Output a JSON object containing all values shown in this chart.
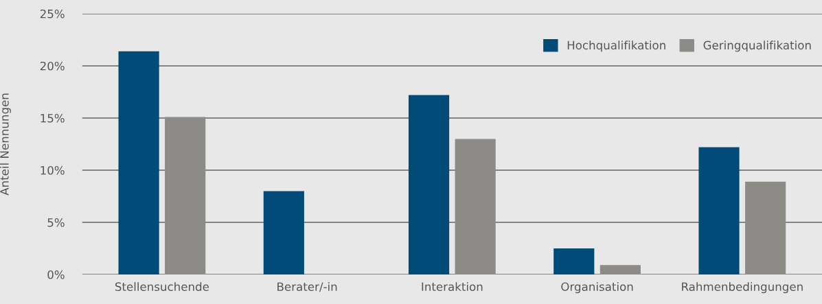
{
  "chart_data": {
    "type": "bar",
    "ylabel": "Anteil Nennungen",
    "categories": [
      "Stellensuchende",
      "Berater/-in",
      "Interaktion",
      "Organisation",
      "Rahmenbedingungen"
    ],
    "series": [
      {
        "name": "Hochqualifikation",
        "color": "#004b78",
        "values": [
          21.4,
          8.0,
          17.2,
          2.5,
          12.2
        ]
      },
      {
        "name": "Geringqualifikation",
        "color": "#8c8b87",
        "values": [
          15.1,
          null,
          13.0,
          0.9,
          8.9
        ]
      }
    ],
    "ylim": [
      0,
      25
    ],
    "yticks": [
      {
        "value": 0,
        "label": "0%"
      },
      {
        "value": 5,
        "label": "5%"
      },
      {
        "value": 10,
        "label": "10%"
      },
      {
        "value": 15,
        "label": "15%"
      },
      {
        "value": 20,
        "label": "20%"
      },
      {
        "value": 25,
        "label": "25%"
      }
    ],
    "grid": "y",
    "legend": "top right"
  }
}
